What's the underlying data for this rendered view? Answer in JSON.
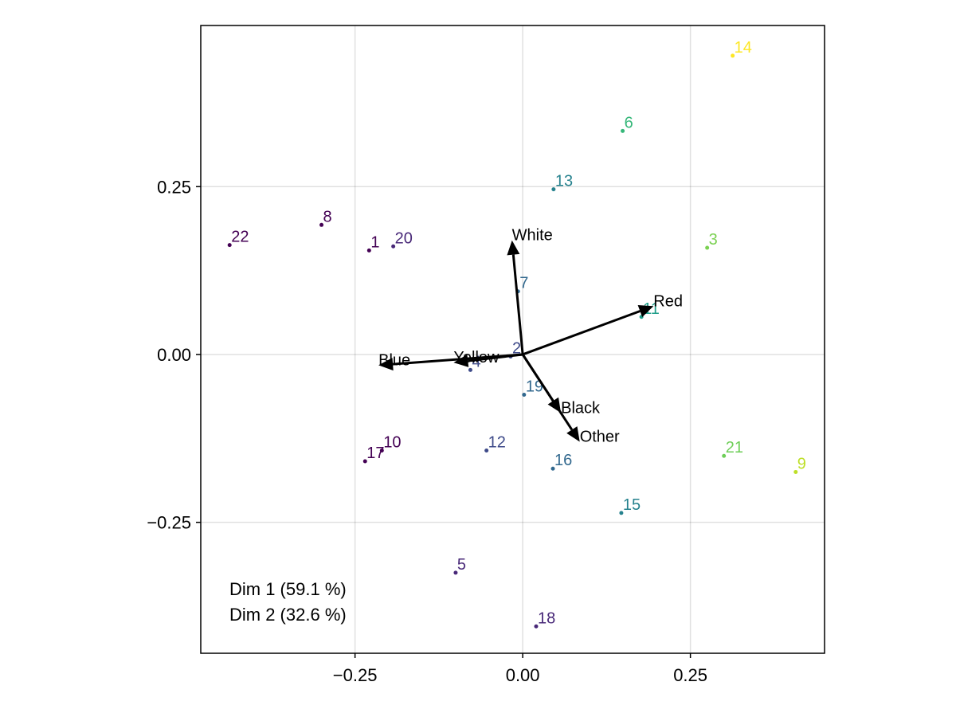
{
  "chart_data": {
    "type": "scatter",
    "title": "",
    "xlabel": "",
    "ylabel": "",
    "xlim": [
      -0.48,
      0.45
    ],
    "ylim": [
      -0.445,
      0.49
    ],
    "grid": true,
    "x_ticks": [
      {
        "value": -0.25,
        "label": "−0.25"
      },
      {
        "value": 0.0,
        "label": "0.00"
      },
      {
        "value": 0.25,
        "label": "0.25"
      }
    ],
    "y_ticks": [
      {
        "value": -0.25,
        "label": "−0.25"
      },
      {
        "value": 0.0,
        "label": "0.00"
      },
      {
        "value": 0.25,
        "label": "0.25"
      }
    ],
    "annotations": [
      "Dim 1 (59.1 %)",
      "Dim 2 (32.6 %)"
    ],
    "points": [
      {
        "label": "1",
        "x": -0.229,
        "y": 0.155,
        "color": "#440154"
      },
      {
        "label": "2",
        "x": -0.018,
        "y": -0.003,
        "color": "#3e4a89"
      },
      {
        "label": "3",
        "x": 0.275,
        "y": 0.159,
        "color": "#7ad151"
      },
      {
        "label": "4",
        "x": -0.078,
        "y": -0.023,
        "color": "#3e4a89"
      },
      {
        "label": "5",
        "x": -0.1,
        "y": -0.325,
        "color": "#482878"
      },
      {
        "label": "6",
        "x": 0.149,
        "y": 0.333,
        "color": "#35b779"
      },
      {
        "label": "7",
        "x": -0.007,
        "y": 0.094,
        "color": "#31688e"
      },
      {
        "label": "8",
        "x": -0.3,
        "y": 0.193,
        "color": "#440154"
      },
      {
        "label": "9",
        "x": 0.407,
        "y": -0.175,
        "color": "#bddf26"
      },
      {
        "label": "10",
        "x": -0.21,
        "y": -0.143,
        "color": "#440154"
      },
      {
        "label": "11",
        "x": 0.177,
        "y": 0.056,
        "color": "#1f9e89"
      },
      {
        "label": "12",
        "x": -0.054,
        "y": -0.143,
        "color": "#3e4a89"
      },
      {
        "label": "13",
        "x": 0.046,
        "y": 0.246,
        "color": "#26828e"
      },
      {
        "label": "14",
        "x": 0.313,
        "y": 0.445,
        "color": "#fde725"
      },
      {
        "label": "15",
        "x": 0.147,
        "y": -0.236,
        "color": "#26828e"
      },
      {
        "label": "16",
        "x": 0.045,
        "y": -0.17,
        "color": "#31688e"
      },
      {
        "label": "17",
        "x": -0.235,
        "y": -0.159,
        "color": "#440154"
      },
      {
        "label": "18",
        "x": 0.02,
        "y": -0.405,
        "color": "#482878"
      },
      {
        "label": "19",
        "x": 0.002,
        "y": -0.06,
        "color": "#31688e"
      },
      {
        "label": "20",
        "x": -0.193,
        "y": 0.161,
        "color": "#482878"
      },
      {
        "label": "21",
        "x": 0.3,
        "y": -0.151,
        "color": "#6ece58"
      },
      {
        "label": "22",
        "x": -0.437,
        "y": 0.163,
        "color": "#440154"
      }
    ],
    "vectors": [
      {
        "label": "White",
        "x": -0.016,
        "y": 0.17
      },
      {
        "label": "Red",
        "x": 0.195,
        "y": 0.072
      },
      {
        "label": "Blue",
        "x": -0.215,
        "y": -0.016
      },
      {
        "label": "Yellow",
        "x": -0.103,
        "y": -0.012
      },
      {
        "label": "Black",
        "x": 0.057,
        "y": -0.087
      },
      {
        "label": "Other",
        "x": 0.085,
        "y": -0.13
      }
    ]
  }
}
